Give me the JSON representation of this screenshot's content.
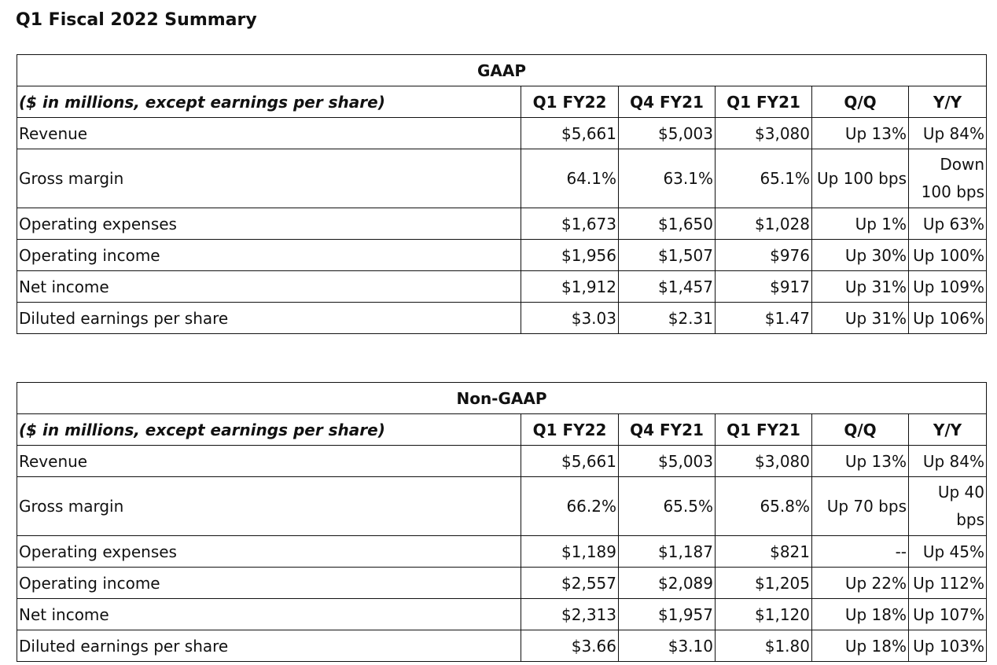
{
  "page_title": "Q1 Fiscal 2022 Summary",
  "gaap": {
    "title": "GAAP",
    "headers": [
      "($ in millions, except earnings per share)",
      "Q1 FY22",
      "Q4 FY21",
      "Q1 FY21",
      "Q/Q",
      "Y/Y"
    ],
    "rows": [
      [
        "Revenue",
        "$5,661",
        "$5,003",
        "$3,080",
        "Up 13%",
        "Up 84%"
      ],
      [
        "Gross margin",
        "64.1%",
        "63.1%",
        "65.1%",
        "Up 100 bps",
        "Down 100 bps"
      ],
      [
        "Operating expenses",
        "$1,673",
        "$1,650",
        "$1,028",
        "Up 1%",
        "Up 63%"
      ],
      [
        "Operating income",
        "$1,956",
        "$1,507",
        "$976",
        "Up 30%",
        "Up 100%"
      ],
      [
        "Net income",
        "$1,912",
        "$1,457",
        "$917",
        "Up 31%",
        "Up 109%"
      ],
      [
        "Diluted earnings per share",
        "$3.03",
        "$2.31",
        "$1.47",
        "Up 31%",
        "Up 106%"
      ]
    ]
  },
  "non_gaap": {
    "title": "Non-GAAP",
    "headers": [
      "($ in millions, except earnings per share)",
      "Q1 FY22",
      "Q4 FY21",
      "Q1 FY21",
      "Q/Q",
      "Y/Y"
    ],
    "rows": [
      [
        "Revenue",
        "$5,661",
        "$5,003",
        "$3,080",
        "Up 13%",
        "Up 84%"
      ],
      [
        "Gross margin",
        "66.2%",
        "65.5%",
        "65.8%",
        "Up 70 bps",
        "Up 40 bps"
      ],
      [
        "Operating expenses",
        "$1,189",
        "$1,187",
        "$821",
        "--",
        "Up 45%"
      ],
      [
        "Operating income",
        "$2,557",
        "$2,089",
        "$1,205",
        "Up 22%",
        "Up 112%"
      ],
      [
        "Net income",
        "$2,313",
        "$1,957",
        "$1,120",
        "Up 18%",
        "Up 107%"
      ],
      [
        "Diluted earnings per share",
        "$3.66",
        "$3.10",
        "$1.80",
        "Up 18%",
        "Up 103%"
      ]
    ]
  }
}
